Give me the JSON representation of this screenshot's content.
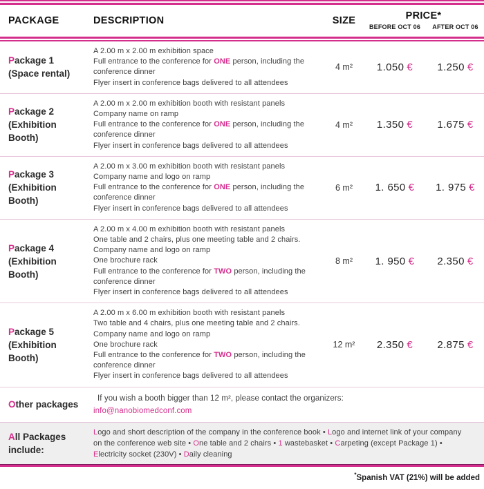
{
  "accent_color": "#d42e8c",
  "currency_symbol": "€",
  "header": {
    "package": "PACKAGE",
    "description": "DESCRIPTION",
    "size": "SIZE",
    "price": "PRICE*",
    "before": "BEFORE OCT 06",
    "after": "AFTER OCT 06"
  },
  "rows": [
    {
      "type": "package",
      "label_lines": [
        "Package 1",
        "(Space rental)"
      ],
      "desc_lines": [
        [
          {
            "t": "A 2.00 m x 2.00 m exhibition space"
          }
        ],
        [
          {
            "t": "Full entrance to the conference for "
          },
          {
            "t": "ONE",
            "accent": true,
            "bold": true
          },
          {
            "t": " person, including the"
          }
        ],
        [
          {
            "t": "conference dinner"
          }
        ],
        [
          {
            "t": "Flyer insert in conference bags delivered to all attendees"
          }
        ]
      ],
      "size": "4 m²",
      "price_before": "1.050",
      "price_after": "1.250"
    },
    {
      "type": "package",
      "label_lines": [
        "Package 2",
        "(Exhibition",
        "Booth)"
      ],
      "desc_lines": [
        [
          {
            "t": "A 2.00 m x 2.00 m exhibition booth with resistant panels"
          }
        ],
        [
          {
            "t": "Company name on ramp"
          }
        ],
        [
          {
            "t": "Full entrance to the conference for "
          },
          {
            "t": "ONE",
            "accent": true,
            "bold": true
          },
          {
            "t": " person, including the"
          }
        ],
        [
          {
            "t": "conference dinner"
          }
        ],
        [
          {
            "t": "Flyer insert in conference bags delivered to all attendees"
          }
        ]
      ],
      "size": "4 m²",
      "price_before": "1.350",
      "price_after": "1.675"
    },
    {
      "type": "package",
      "label_lines": [
        "Package 3",
        "(Exhibition",
        "Booth)"
      ],
      "desc_lines": [
        [
          {
            "t": "A 2.00 m x 3.00 m exhibition booth with resistant panels"
          }
        ],
        [
          {
            "t": "Company name and logo on ramp"
          }
        ],
        [
          {
            "t": "Full entrance to the conference for "
          },
          {
            "t": "ONE",
            "accent": true,
            "bold": true
          },
          {
            "t": " person, including the"
          }
        ],
        [
          {
            "t": "conference dinner"
          }
        ],
        [
          {
            "t": "Flyer insert in conference bags delivered to all attendees"
          }
        ]
      ],
      "size": "6 m²",
      "price_before": "1. 650",
      "price_after": "1. 975"
    },
    {
      "type": "package",
      "label_lines": [
        "Package 4",
        "(Exhibition",
        "Booth)"
      ],
      "desc_lines": [
        [
          {
            "t": "A 2.00 m x 4.00 m exhibition booth with resistant panels"
          }
        ],
        [
          {
            "t": "One table and 2 chairs, plus one meeting table and 2 chairs."
          }
        ],
        [
          {
            "t": "Company name and logo on ramp"
          }
        ],
        [
          {
            "t": "One brochure rack"
          }
        ],
        [
          {
            "t": "Full entrance to the conference for "
          },
          {
            "t": "TWO",
            "accent": true,
            "bold": true
          },
          {
            "t": " person, including the"
          }
        ],
        [
          {
            "t": "conference dinner"
          }
        ],
        [
          {
            "t": "Flyer insert in conference bags delivered to all attendees"
          }
        ]
      ],
      "size": "8 m²",
      "price_before": "1. 950",
      "price_after": "2.350"
    },
    {
      "type": "package",
      "label_lines": [
        "Package 5",
        "(Exhibition",
        "Booth)"
      ],
      "desc_lines": [
        [
          {
            "t": "A 2.00 m x 6.00 m exhibition booth with resistant panels"
          }
        ],
        [
          {
            "t": "Two table and 4 chairs, plus one meeting table and 2 chairs."
          }
        ],
        [
          {
            "t": "Company name and logo on ramp"
          }
        ],
        [
          {
            "t": "One brochure rack"
          }
        ],
        [
          {
            "t": "Full entrance to the conference for "
          },
          {
            "t": "TWO",
            "accent": true,
            "bold": true
          },
          {
            "t": " person, including the"
          }
        ],
        [
          {
            "t": "conference dinner"
          }
        ],
        [
          {
            "t": "Flyer insert in conference bags delivered to all attendees"
          }
        ]
      ],
      "size": "12 m²",
      "price_before": "2.350",
      "price_after": "2.875"
    },
    {
      "type": "other",
      "label_lines": [
        "Other packages"
      ],
      "desc_lines": [
        [
          {
            "t": "If you wish a booth bigger than 12 m², please contact the organizers:"
          }
        ],
        [
          {
            "t": "info@nanobiomedconf.com",
            "accent": true,
            "link": true
          }
        ]
      ]
    },
    {
      "type": "all",
      "label_lines": [
        "All Packages",
        "include:"
      ],
      "desc_paragraph": [
        {
          "t": "L",
          "accent": true
        },
        {
          "t": "ogo and short description of the company in the conference book • "
        },
        {
          "t": "L",
          "accent": true
        },
        {
          "t": "ogo and internet link of your company on the conference web site • "
        },
        {
          "t": "O",
          "accent": true
        },
        {
          "t": "ne table and 2 chairs • "
        },
        {
          "t": "1",
          "accent": true
        },
        {
          "t": " wastebasket • "
        },
        {
          "t": "C",
          "accent": true
        },
        {
          "t": "arpeting (except Package 1) • "
        },
        {
          "t": "E",
          "accent": true
        },
        {
          "t": "lectricity socket (230V) • "
        },
        {
          "t": "D",
          "accent": true
        },
        {
          "t": "aily cleaning"
        }
      ]
    }
  ],
  "footnote": {
    "asterisk": "*",
    "text": "Spanish VAT (21%) will be added"
  }
}
